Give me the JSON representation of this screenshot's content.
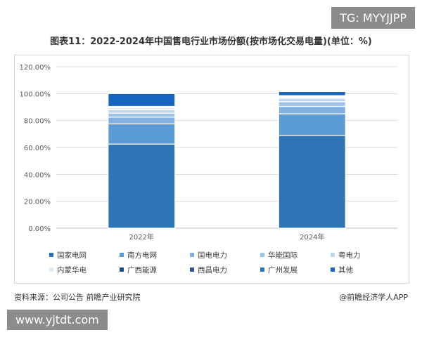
{
  "watermarks": {
    "top": "TG: MYYJJPP",
    "bottom": "www.yjtdt.com"
  },
  "footer": {
    "source": "资料来源：公司公告 前瞻产业研究院",
    "credit": "@前瞻经济学人APP"
  },
  "colors": {
    "国家电网": "#2e75b6",
    "南方电网": "#5b9bd5",
    "国电电力": "#82b1e0",
    "华能国际": "#9dc3e6",
    "粤电力": "#bdd7ee",
    "内蒙华电": "#ddebf7",
    "广西能源": "#1f4e79",
    "西昌电力": "#2f5597",
    "广州发展": "#2e75b6",
    "其他": "#1565c0"
  },
  "chart_data": {
    "type": "bar",
    "stacked": true,
    "title": "图表11：2022-2024年中国售电行业市场份额(按市场化交易电量)(单位：%)",
    "xlabel": "",
    "ylabel": "",
    "categories": [
      "2022年",
      "2024年"
    ],
    "ylim": [
      0,
      120
    ],
    "yticks": [
      "0.00%",
      "20.00%",
      "40.00%",
      "60.00%",
      "80.00%",
      "100.00%",
      "120.00%"
    ],
    "ytick_values": [
      0,
      20,
      40,
      60,
      80,
      100,
      120
    ],
    "grid": true,
    "legend_position": "bottom",
    "series": [
      {
        "name": "国家电网",
        "values": [
          62.5,
          69.0
        ]
      },
      {
        "name": "南方电网",
        "values": [
          15.0,
          16.0
        ]
      },
      {
        "name": "国电电力",
        "values": [
          5.0,
          5.5
        ]
      },
      {
        "name": "华能国际",
        "values": [
          3.0,
          3.5
        ]
      },
      {
        "name": "粤电力",
        "values": [
          2.5,
          2.5
        ]
      },
      {
        "name": "内蒙华电",
        "values": [
          1.5,
          1.0
        ]
      },
      {
        "name": "广西能源",
        "values": [
          0.5,
          0.5
        ]
      },
      {
        "name": "西昌电力",
        "values": [
          0.3,
          0.3
        ]
      },
      {
        "name": "广州发展",
        "values": [
          0.2,
          0.2
        ]
      },
      {
        "name": "其他",
        "values": [
          9.5,
          3.0
        ]
      }
    ]
  }
}
